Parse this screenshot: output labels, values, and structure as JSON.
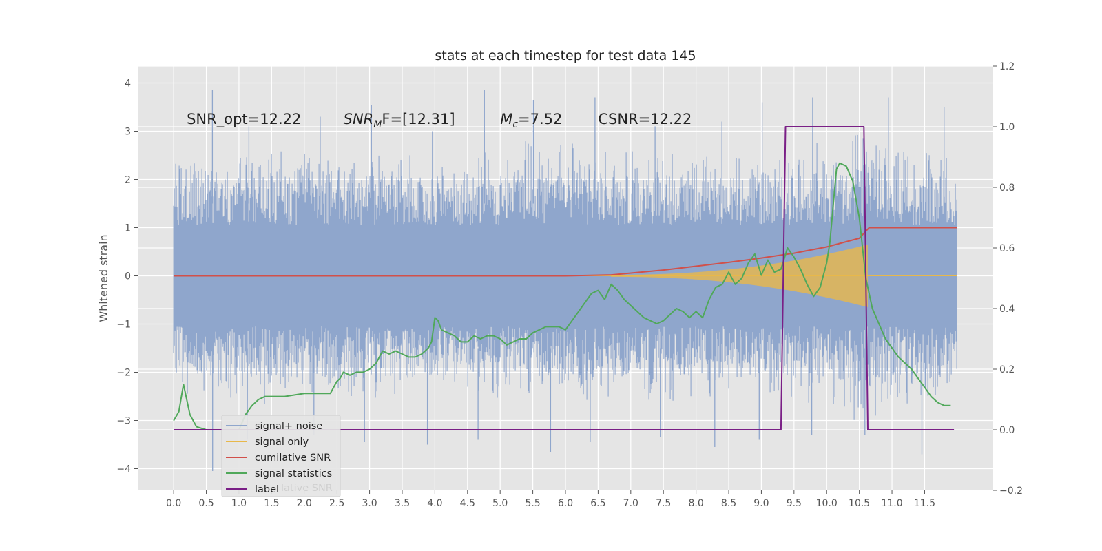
{
  "chart_data": {
    "type": "line",
    "title": "stats at each timestep for test data 145",
    "ylabel": "Whitened strain",
    "xlabel": "",
    "xlim": [
      -0.55,
      12.55
    ],
    "ylim": [
      -4.45,
      4.35
    ],
    "y2lim": [
      -0.2,
      1.2
    ],
    "grid": true,
    "legend_location": "lower-left",
    "x_ticks": [
      "0.0",
      "0.5",
      "1.0",
      "1.5",
      "2.0",
      "2.5",
      "3.0",
      "3.5",
      "4.0",
      "4.5",
      "5.0",
      "5.5",
      "6.0",
      "6.5",
      "7.0",
      "7.5",
      "8.0",
      "8.5",
      "9.0",
      "9.5",
      "10.0",
      "10.5",
      "11.0",
      "11.5"
    ],
    "y_ticks": [
      "4",
      "3",
      "2",
      "1",
      "0",
      "−1",
      "−2",
      "−3",
      "−4"
    ],
    "y2_ticks": [
      "1.2",
      "1.0",
      "0.8",
      "0.6",
      "0.4",
      "0.2",
      "0.0",
      "−0.2"
    ],
    "annotations": [
      {
        "text": "SNR_opt=12.22",
        "x": 0.2,
        "y": 3.15
      },
      {
        "pre": "SNR",
        "sub": "M",
        "post": "F=[12.31]",
        "x": 2.6,
        "y": 3.15
      },
      {
        "pre": "M",
        "sub": "c",
        "post": "=7.52",
        "x": 5.0,
        "y": 3.15
      },
      {
        "pre": "",
        "sub": "",
        "post": "CSNR=12.22",
        "x": 6.5,
        "y": 3.15
      }
    ],
    "series": [
      {
        "name": "signal+ noise",
        "color": "#8fa6cc",
        "axis": "left",
        "x_range": [
          0.0,
          12.0
        ],
        "envelope": {
          "upper_x": [
            0.0,
            1.0,
            2.0,
            3.0,
            4.0,
            5.0,
            6.0,
            7.0,
            8.0,
            9.0,
            10.0,
            10.5,
            11.0,
            11.5,
            12.0
          ],
          "upper": [
            2.3,
            2.6,
            2.4,
            2.5,
            2.3,
            2.6,
            2.7,
            2.5,
            2.4,
            2.3,
            2.6,
            2.9,
            2.8,
            2.6,
            2.2
          ],
          "lower": [
            -2.3,
            -2.5,
            -2.4,
            -2.6,
            -2.3,
            -2.5,
            -2.6,
            -2.4,
            -2.5,
            -2.4,
            -2.6,
            -2.9,
            -2.6,
            -2.5,
            -2.3
          ],
          "core": 1.05,
          "spikes_max": [
            3.85,
            3.1,
            3.3,
            3.55,
            3.0,
            3.85,
            3.65,
            3.7,
            3.1,
            3.2,
            3.6,
            3.7,
            3.7,
            3.5
          ],
          "spikes_min": [
            -4.05,
            -3.4,
            -3.3,
            -3.45,
            -3.5,
            -3.4,
            -3.65,
            -3.45,
            -3.35,
            -3.55,
            -3.4,
            -3.3,
            -3.3,
            -3.7
          ]
        }
      },
      {
        "name": "signal only",
        "color": "#e8b84a",
        "axis": "left",
        "chirp_start": 6.7,
        "chirp_end": 10.63,
        "amp_start": 0.02,
        "amp_end": 0.65
      },
      {
        "name": "cumilative SNR",
        "color": "#d1504a",
        "axis": "left",
        "x": [
          0.0,
          6.0,
          6.7,
          7.5,
          8.0,
          8.5,
          9.0,
          9.5,
          10.0,
          10.5,
          10.65,
          12.0
        ],
        "y": [
          0.0,
          0.0,
          0.02,
          0.12,
          0.2,
          0.28,
          0.37,
          0.47,
          0.6,
          0.78,
          1.0,
          1.0
        ]
      },
      {
        "name": "signal statistics",
        "color": "#50a85a",
        "axis": "right",
        "x": [
          0.0,
          0.08,
          0.15,
          0.25,
          0.35,
          0.5,
          0.75,
          1.0,
          1.1,
          1.2,
          1.3,
          1.4,
          1.5,
          1.7,
          2.0,
          2.4,
          2.45,
          2.5,
          2.55,
          2.6,
          2.7,
          2.8,
          2.9,
          3.0,
          3.1,
          3.2,
          3.3,
          3.4,
          3.5,
          3.6,
          3.7,
          3.8,
          3.9,
          3.95,
          4.0,
          4.05,
          4.1,
          4.2,
          4.3,
          4.4,
          4.5,
          4.6,
          4.7,
          4.8,
          4.9,
          5.0,
          5.1,
          5.2,
          5.3,
          5.4,
          5.5,
          5.6,
          5.7,
          5.8,
          5.9,
          6.0,
          6.1,
          6.2,
          6.3,
          6.4,
          6.5,
          6.6,
          6.7,
          6.8,
          6.9,
          7.0,
          7.1,
          7.2,
          7.3,
          7.4,
          7.5,
          7.6,
          7.7,
          7.8,
          7.9,
          8.0,
          8.1,
          8.2,
          8.3,
          8.4,
          8.5,
          8.6,
          8.7,
          8.8,
          8.9,
          9.0,
          9.1,
          9.2,
          9.3,
          9.4,
          9.5,
          9.6,
          9.7,
          9.8,
          9.9,
          10.0,
          10.05,
          10.1,
          10.15,
          10.2,
          10.3,
          10.4,
          10.5,
          10.6,
          10.7,
          10.8,
          10.9,
          11.0,
          11.1,
          11.2,
          11.3,
          11.4,
          11.5,
          11.6,
          11.7,
          11.8,
          11.9
        ],
        "y": [
          0.03,
          0.06,
          0.15,
          0.05,
          0.01,
          0.0,
          0.0,
          0.0,
          0.05,
          0.08,
          0.1,
          0.11,
          0.11,
          0.11,
          0.12,
          0.12,
          0.14,
          0.16,
          0.17,
          0.19,
          0.18,
          0.19,
          0.19,
          0.2,
          0.22,
          0.26,
          0.25,
          0.26,
          0.25,
          0.24,
          0.24,
          0.25,
          0.27,
          0.29,
          0.37,
          0.36,
          0.33,
          0.32,
          0.31,
          0.29,
          0.29,
          0.31,
          0.3,
          0.31,
          0.31,
          0.3,
          0.28,
          0.29,
          0.3,
          0.3,
          0.32,
          0.33,
          0.34,
          0.34,
          0.34,
          0.33,
          0.36,
          0.39,
          0.42,
          0.45,
          0.46,
          0.43,
          0.48,
          0.46,
          0.43,
          0.41,
          0.39,
          0.37,
          0.36,
          0.35,
          0.36,
          0.38,
          0.4,
          0.39,
          0.37,
          0.39,
          0.37,
          0.43,
          0.47,
          0.48,
          0.52,
          0.48,
          0.5,
          0.55,
          0.58,
          0.51,
          0.56,
          0.52,
          0.53,
          0.6,
          0.57,
          0.53,
          0.48,
          0.44,
          0.47,
          0.55,
          0.62,
          0.74,
          0.86,
          0.88,
          0.87,
          0.82,
          0.7,
          0.5,
          0.4,
          0.35,
          0.3,
          0.27,
          0.24,
          0.22,
          0.2,
          0.17,
          0.14,
          0.11,
          0.09,
          0.08,
          0.08
        ]
      },
      {
        "name": "label",
        "color": "#7a1f86",
        "axis": "right",
        "x": [
          0.0,
          9.3,
          9.37,
          10.57,
          10.63,
          11.95
        ],
        "y": [
          0.0,
          0.0,
          1.0,
          1.0,
          0.0,
          0.0
        ]
      }
    ],
    "legend": [
      "signal+ noise",
      "signal only",
      "cumilative SNR",
      "signal statistics",
      "label"
    ],
    "legend_ghost_text": "lative SNR"
  }
}
